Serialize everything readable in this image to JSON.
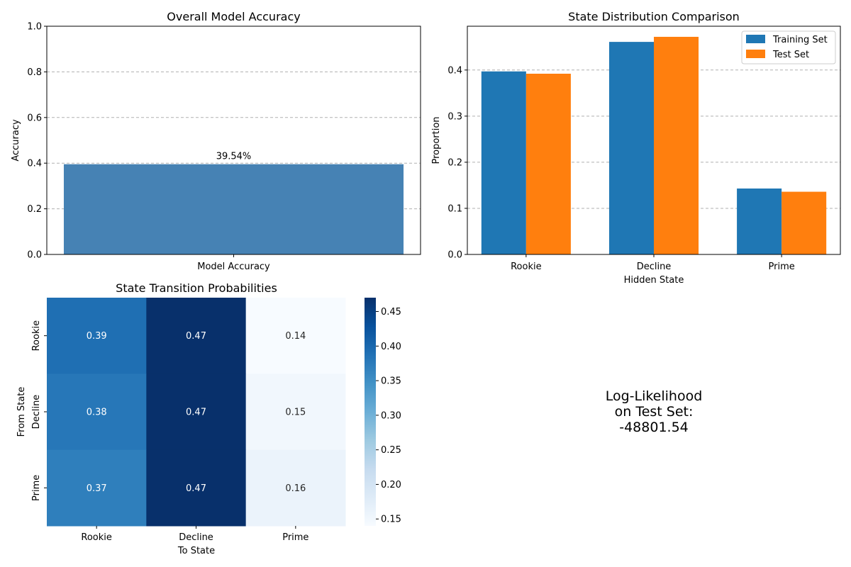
{
  "chart_data": [
    {
      "type": "bar",
      "title": "Overall Model Accuracy",
      "xlabel": "",
      "ylabel": "Accuracy",
      "categories": [
        "Model Accuracy"
      ],
      "values": [
        0.3954
      ],
      "data_labels": [
        "39.54%"
      ],
      "ylim": [
        0,
        1
      ],
      "yticks": [
        "0.0",
        "0.2",
        "0.4",
        "0.6",
        "0.8",
        "1.0"
      ],
      "grid": "y-dashed",
      "bar_color": "#4682b4"
    },
    {
      "type": "bar",
      "title": "State Distribution Comparison",
      "xlabel": "Hidden State",
      "ylabel": "Proportion",
      "categories": [
        "Rookie",
        "Decline",
        "Prime"
      ],
      "series": [
        {
          "name": "Training Set",
          "values": [
            0.397,
            0.461,
            0.143
          ],
          "color": "#1f77b4"
        },
        {
          "name": "Test Set",
          "values": [
            0.392,
            0.472,
            0.136
          ],
          "color": "#ff7f0e"
        }
      ],
      "ylim": [
        0,
        0.495
      ],
      "yticks": [
        "0.0",
        "0.1",
        "0.2",
        "0.3",
        "0.4"
      ],
      "grid": "y-dashed",
      "legend": "top-right"
    },
    {
      "type": "heatmap",
      "title": "State Transition Probabilities",
      "xlabel": "To State",
      "ylabel": "From State",
      "x_categories": [
        "Rookie",
        "Decline",
        "Prime"
      ],
      "y_categories": [
        "Rookie",
        "Decline",
        "Prime"
      ],
      "values": [
        [
          0.39,
          0.47,
          0.14
        ],
        [
          0.38,
          0.47,
          0.15
        ],
        [
          0.37,
          0.47,
          0.16
        ]
      ],
      "value_labels": [
        [
          "0.39",
          "0.47",
          "0.14"
        ],
        [
          "0.38",
          "0.47",
          "0.15"
        ],
        [
          "0.37",
          "0.47",
          "0.16"
        ]
      ],
      "colorbar_range": [
        0.14,
        0.47
      ],
      "colorbar_ticks": [
        "0.15",
        "0.20",
        "0.25",
        "0.30",
        "0.35",
        "0.40",
        "0.45"
      ],
      "colormap": "Blues"
    }
  ],
  "annotation": {
    "line1": "Log-Likelihood",
    "line2": "on Test Set:",
    "line3": "-48801.54"
  }
}
